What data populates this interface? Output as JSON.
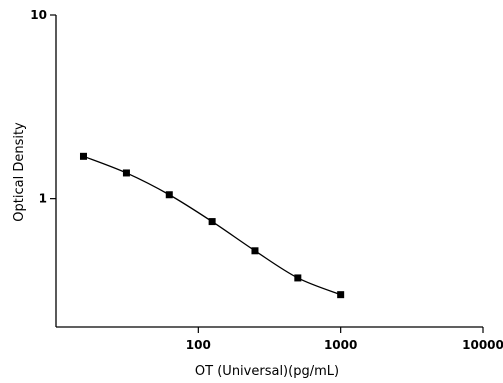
{
  "chart_data": {
    "type": "scatter",
    "title": "",
    "xlabel": "OT (Universal)(pg/mL)",
    "ylabel": "Optical Density",
    "x_scale": "log",
    "y_scale": "log",
    "xlim": [
      10,
      10000
    ],
    "ylim": [
      0.2,
      10
    ],
    "x_tick_labels": [
      "100",
      "1000",
      "10000"
    ],
    "x_tick_values": [
      100,
      1000,
      10000
    ],
    "y_tick_labels": [
      "1",
      "10"
    ],
    "y_tick_values": [
      1,
      10
    ],
    "grid": false,
    "fit_curve": true,
    "series": [
      {
        "x": [
          15.6,
          31.25,
          62.5,
          125,
          250,
          500,
          1000
        ],
        "y": [
          1.7,
          1.38,
          1.05,
          0.75,
          0.52,
          0.37,
          0.3
        ]
      }
    ]
  }
}
